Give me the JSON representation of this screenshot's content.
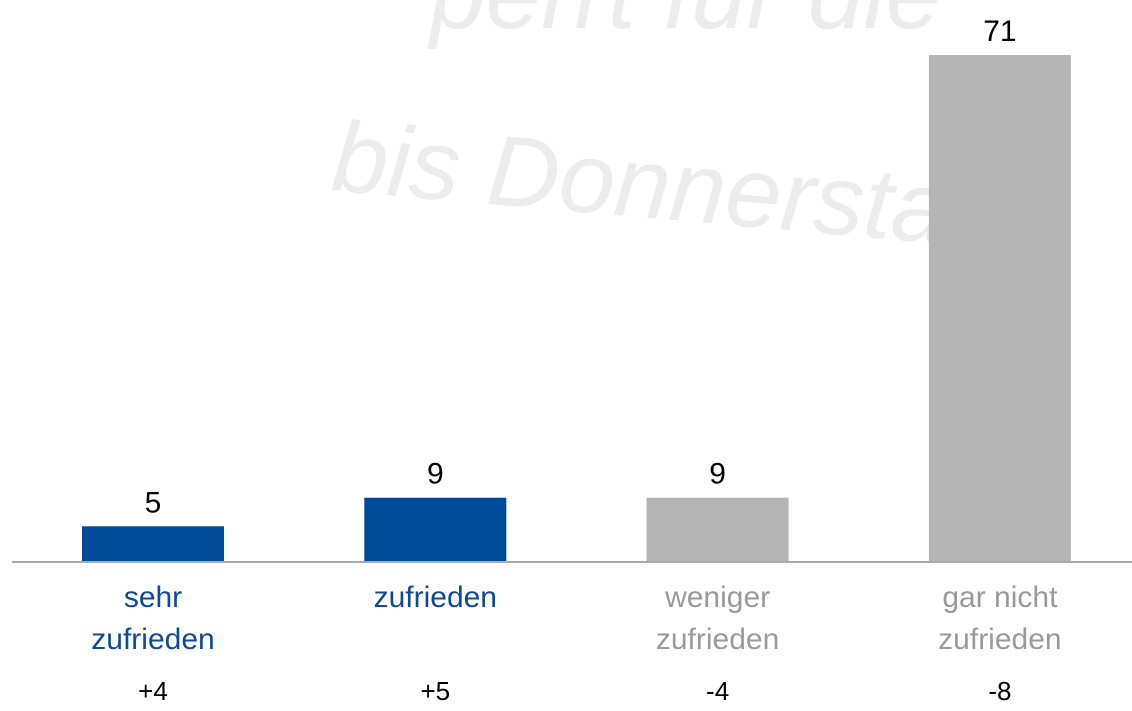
{
  "chart_data": {
    "type": "bar",
    "watermark": [
      "perrt für die",
      "bis Donnerstag"
    ],
    "categories": [
      "sehr zufrieden",
      "zufrieden",
      "weniger zufrieden",
      "gar nicht zufrieden"
    ],
    "values": [
      5,
      9,
      9,
      71
    ],
    "colors": [
      "#004a98",
      "#004a98",
      "#b4b4b4",
      "#b4b4b4"
    ],
    "label_colors": [
      "#0f4a97",
      "#0f4a97",
      "#9a9a9a",
      "#9a9a9a"
    ],
    "changes": [
      4,
      5,
      -4,
      -8
    ],
    "change_labels": [
      "+4",
      "+5",
      "-4",
      "-8"
    ]
  }
}
